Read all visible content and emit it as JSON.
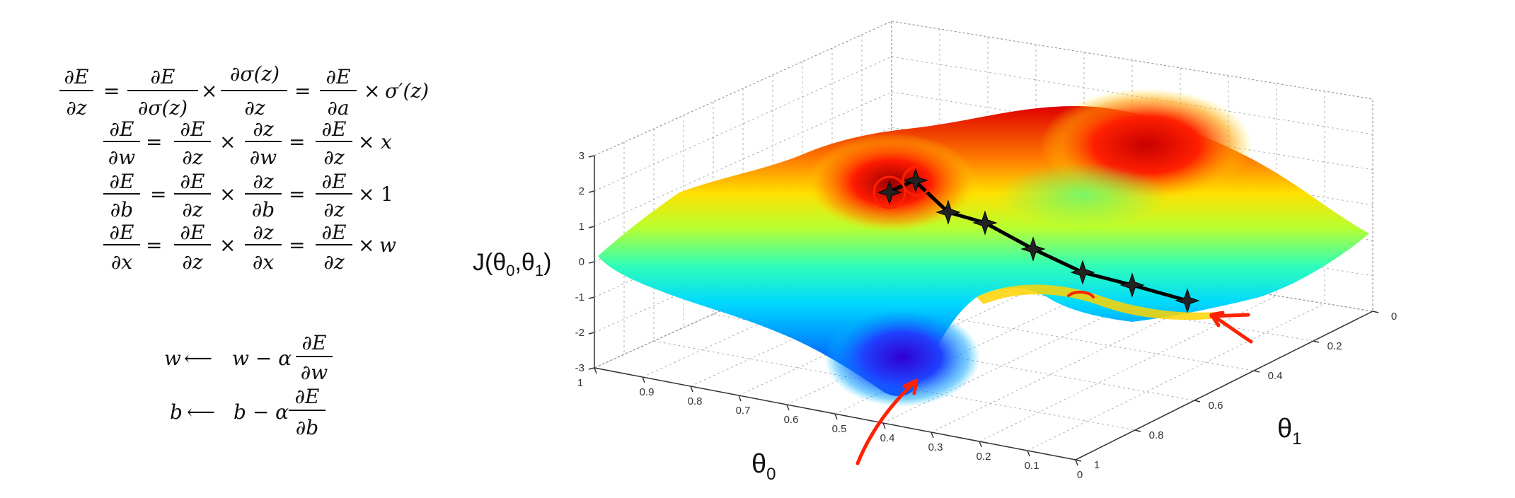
{
  "equations": {
    "sigmoid_chain": {
      "line": [
        "∂E/∂z",
        "=",
        "∂E/∂σ(z)",
        "×",
        "∂σ(z)/∂z",
        "=",
        "∂E/∂a",
        "×",
        "σ′(z)"
      ]
    },
    "rows": [
      {
        "lhs": "∂E/∂w",
        "mid": "∂E/∂z × ∂z/∂w",
        "rhs": "∂E/∂z × x"
      },
      {
        "lhs": "∂E/∂b",
        "mid": "∂E/∂z × ∂z/∂b",
        "rhs": "∂E/∂z × 1"
      },
      {
        "lhs": "∂E/∂x",
        "mid": "∂E/∂z × ∂z/∂x",
        "rhs": "∂E/∂z × w"
      }
    ],
    "updates": [
      {
        "var": "w",
        "arrow": "⟵",
        "expr": "w − α",
        "grad_num": "∂E",
        "grad_den": "∂w"
      },
      {
        "var": "b",
        "arrow": "⟵",
        "expr": "b − α",
        "grad_num": "∂E",
        "grad_den": "∂b"
      }
    ],
    "symbols": {
      "dE": "∂E",
      "dz": "∂z",
      "ds": "∂σ(z)",
      "dsz": "∂σ(z)",
      "da": "∂a",
      "dw": "∂w",
      "db": "∂b",
      "dx": "∂x",
      "times": "×",
      "eq": "=",
      "sigp": "σ′(z)",
      "x": "x",
      "one": "1",
      "w": "w"
    }
  },
  "chart_data": {
    "type": "surface3d",
    "zlabel": "J(θ0,θ1)",
    "xlabel": "θ0",
    "ylabel": "θ1",
    "z_ticks": [
      "3",
      "2",
      "1",
      "0",
      "-1",
      "-2",
      "-3"
    ],
    "x_ticks": [
      "1",
      "0.9",
      "0.8",
      "0.7",
      "0.6",
      "0.5",
      "0.4",
      "0.3",
      "0.2",
      "0.1",
      "0"
    ],
    "y_ticks": [
      "0",
      "0.2",
      "0.4",
      "0.6",
      "0.8",
      "1"
    ],
    "zlim": [
      -3,
      3
    ],
    "xlim": [
      1,
      0
    ],
    "ylim": [
      0,
      1
    ],
    "colormap": [
      "#0000ff",
      "#00c8ff",
      "#40ffb0",
      "#c8ff30",
      "#ffd200",
      "#ff6a00",
      "#e00000"
    ],
    "path_color": "#000000",
    "highlight_color": "#ff2200",
    "grid": true
  }
}
